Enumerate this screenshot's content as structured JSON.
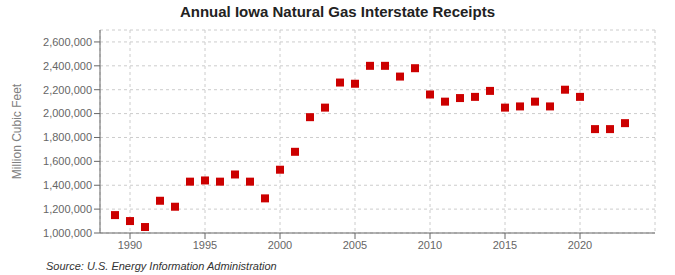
{
  "chart_data": {
    "type": "scatter",
    "title": "Annual Iowa Natural Gas Interstate Receipts",
    "ylabel": "Million Cubic Feet",
    "annotation": "Source: U.S. Energy Information Administration",
    "x": [
      1989,
      1990,
      1991,
      1992,
      1993,
      1994,
      1995,
      1996,
      1997,
      1998,
      1999,
      2000,
      2001,
      2002,
      2003,
      2004,
      2005,
      2006,
      2007,
      2008,
      2009,
      2010,
      2011,
      2012,
      2013,
      2014,
      2015,
      2016,
      2017,
      2018,
      2019,
      2020,
      2021,
      2022,
      2023
    ],
    "values": [
      1150000,
      1100000,
      1050000,
      1270000,
      1220000,
      1430000,
      1440000,
      1430000,
      1490000,
      1430000,
      1290000,
      1530000,
      1680000,
      1970000,
      2050000,
      2260000,
      2250000,
      2400000,
      2400000,
      2310000,
      2380000,
      2160000,
      2100000,
      2130000,
      2140000,
      2190000,
      2050000,
      2060000,
      2100000,
      2060000,
      2200000,
      2140000,
      1870000,
      1870000,
      1920000
    ],
    "color": "#cc0000",
    "marker": "square",
    "xlim": [
      1988,
      2025
    ],
    "ylim": [
      1000000,
      2700000
    ],
    "xticks": [
      1990,
      1995,
      2000,
      2005,
      2010,
      2015,
      2020
    ],
    "yticks": [
      {
        "value": 1000000,
        "label": "1,000,000"
      },
      {
        "value": 1200000,
        "label": "1,200,000"
      },
      {
        "value": 1400000,
        "label": "1,400,000"
      },
      {
        "value": 1600000,
        "label": "1,600,000"
      },
      {
        "value": 1800000,
        "label": "1,800,000"
      },
      {
        "value": 2000000,
        "label": "2,000,000"
      },
      {
        "value": 2200000,
        "label": "2,200,000"
      },
      {
        "value": 2400000,
        "label": "2,400,000"
      },
      {
        "value": 2600000,
        "label": "2,600,000"
      }
    ],
    "grid": true
  }
}
